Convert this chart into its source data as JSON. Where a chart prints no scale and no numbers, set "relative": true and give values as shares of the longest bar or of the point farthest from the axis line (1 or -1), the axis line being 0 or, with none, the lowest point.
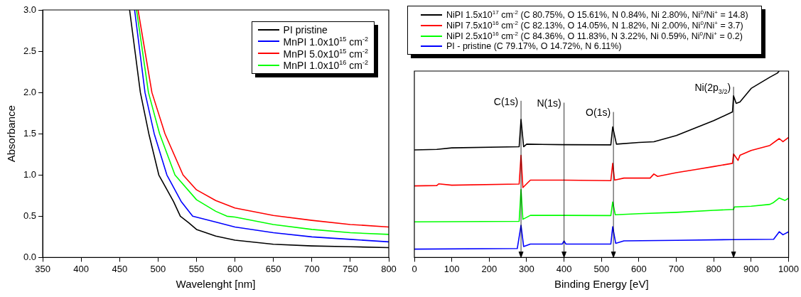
{
  "chart_data": [
    {
      "type": "line",
      "xlabel": "Wavelenght [nm]",
      "ylabel": "Absorbance",
      "xlim": [
        350,
        800
      ],
      "xticks": [
        350,
        400,
        450,
        500,
        550,
        600,
        650,
        700,
        750,
        800
      ],
      "ylim": [
        0,
        3
      ],
      "yticks": [
        {
          "value": 0,
          "label": "0.0"
        },
        0.5,
        {
          "value": 1,
          "label": "1.0"
        },
        1.5,
        {
          "value": 2,
          "label": "2.0"
        },
        2.5,
        {
          "value": 3,
          "label": "3.0"
        }
      ],
      "grid": false,
      "legend": "top right",
      "marker": "none",
      "line_style": "solid",
      "series": [
        {
          "name": "PI pristine",
          "color": "#000000",
          "x": [
            463,
            477,
            488,
            501,
            520,
            529,
            540,
            550,
            575,
            600,
            650,
            700,
            750,
            800
          ],
          "values": [
            3.0,
            2.0,
            1.5,
            1.0,
            0.68,
            0.5,
            0.42,
            0.34,
            0.26,
            0.21,
            0.16,
            0.14,
            0.13,
            0.12
          ]
        },
        {
          "name": "MnPI 1.0x10$^{15}$ cm$^{-2}$",
          "color": "#0000ff",
          "x": [
            469.5,
            483,
            495,
            511.5,
            530,
            545,
            575,
            600,
            650,
            700,
            750,
            800
          ],
          "values": [
            3.0,
            2.0,
            1.5,
            1.0,
            0.68,
            0.5,
            0.43,
            0.37,
            0.3,
            0.25,
            0.22,
            0.19
          ]
        },
        {
          "name": "MnPI 5.0x10$^{15}$ cm$^{-2}$",
          "color": "#ff0000",
          "x": [
            474,
            492,
            509,
            532.5,
            550,
            575,
            600,
            650,
            700,
            750,
            800
          ],
          "values": [
            3.0,
            2.0,
            1.5,
            1.0,
            0.82,
            0.69,
            0.6,
            0.51,
            0.45,
            0.4,
            0.37
          ]
        },
        {
          "name": "MnPI 1.0x10$^{16}$ cm$^{-2}$",
          "color": "#00ff00",
          "x": [
            472,
            487.5,
            502,
            522,
            550,
            575,
            589.6,
            600,
            650,
            700,
            750,
            800
          ],
          "values": [
            3.0,
            2.0,
            1.5,
            1.0,
            0.7,
            0.56,
            0.5,
            0.49,
            0.4,
            0.34,
            0.3,
            0.28
          ]
        }
      ]
    },
    {
      "type": "line",
      "relative": true,
      "xlabel": "Binding Energy [eV]",
      "xlim": [
        0,
        1000
      ],
      "xticks": [
        0,
        100,
        200,
        300,
        400,
        500,
        600,
        700,
        800,
        900,
        1000
      ],
      "grid": false,
      "legend": "top",
      "marker": "none",
      "line_style": "solid",
      "ref_lines": [
        {
          "axis": "x",
          "value": 285,
          "label": "C(1s)"
        },
        {
          "axis": "x",
          "value": 400,
          "label": "N(1s)"
        },
        {
          "axis": "x",
          "value": 532,
          "label": "O(1s)"
        },
        {
          "axis": "x",
          "value": 853,
          "label": "Ni(2p$_{3/2}$)"
        }
      ],
      "series": [
        {
          "name": "NiPI 1.5x10$^{17}$ cm$^{-2}$ (C 80.75%, O 15.61%, N 0.84%, Ni 2.80%, Ni$^{0}$/Ni$^{+}$ = 14.8)",
          "color": "#000000",
          "x": [
            0,
            60,
            100,
            280,
            285,
            292,
            300,
            400,
            525,
            530,
            540,
            600,
            640,
            700,
            750,
            800,
            850,
            853,
            860,
            870,
            900,
            950,
            970,
            975
          ],
          "values": [
            0.577,
            0.58,
            0.588,
            0.594,
            0.741,
            0.594,
            0.608,
            0.605,
            0.604,
            0.701,
            0.608,
            0.617,
            0.621,
            0.654,
            0.694,
            0.734,
            0.781,
            0.867,
            0.827,
            0.834,
            0.907,
            0.967,
            0.989,
            1.0
          ]
        },
        {
          "name": "NiPI 7.5x10$^{16}$ cm$^{-2}$ (C 82.13%, O 14.05%, N 1.82%, Ni 2.00%, Ni$^{0}$/Ni$^{+}$ = 3.7)",
          "color": "#ff0000",
          "x": [
            0,
            60,
            65,
            100,
            280,
            285,
            290,
            310,
            400,
            525,
            530,
            535,
            560,
            630,
            640,
            650,
            700,
            750,
            800,
            850,
            853,
            865,
            870,
            900,
            950,
            975,
            985,
            1000
          ],
          "values": [
            0.384,
            0.386,
            0.395,
            0.388,
            0.394,
            0.548,
            0.375,
            0.415,
            0.415,
            0.412,
            0.505,
            0.415,
            0.426,
            0.426,
            0.448,
            0.435,
            0.455,
            0.471,
            0.488,
            0.505,
            0.555,
            0.521,
            0.548,
            0.574,
            0.601,
            0.638,
            0.621,
            0.644
          ]
        },
        {
          "name": "NiPI 2.5x10$^{16}$ cm$^{-2}$ (C 84.36%, O 11.83%, N 3.22%, Ni 0.59%, Ni$^{0}$/Ni$^{+}$ = 0.2)",
          "color": "#00ff00",
          "x": [
            0,
            280,
            285,
            290,
            310,
            400,
            525,
            530,
            537,
            600,
            700,
            800,
            853,
            855,
            900,
            950,
            960,
            975,
            990,
            1000
          ],
          "values": [
            0.191,
            0.194,
            0.364,
            0.205,
            0.226,
            0.226,
            0.225,
            0.298,
            0.229,
            0.235,
            0.242,
            0.253,
            0.258,
            0.271,
            0.275,
            0.285,
            0.295,
            0.319,
            0.306,
            0.318
          ]
        },
        {
          "name": "PI - pristine (C 79.17%, O 14.72%, N 6.11%)",
          "color": "#0000ff",
          "x": [
            0,
            275,
            285,
            292,
            310,
            395,
            400,
            405,
            525,
            530,
            538,
            560,
            700,
            850,
            960,
            975,
            985,
            1000
          ],
          "values": [
            0.045,
            0.048,
            0.173,
            0.059,
            0.072,
            0.072,
            0.089,
            0.072,
            0.072,
            0.165,
            0.076,
            0.089,
            0.092,
            0.096,
            0.098,
            0.138,
            0.122,
            0.138
          ]
        }
      ]
    }
  ]
}
